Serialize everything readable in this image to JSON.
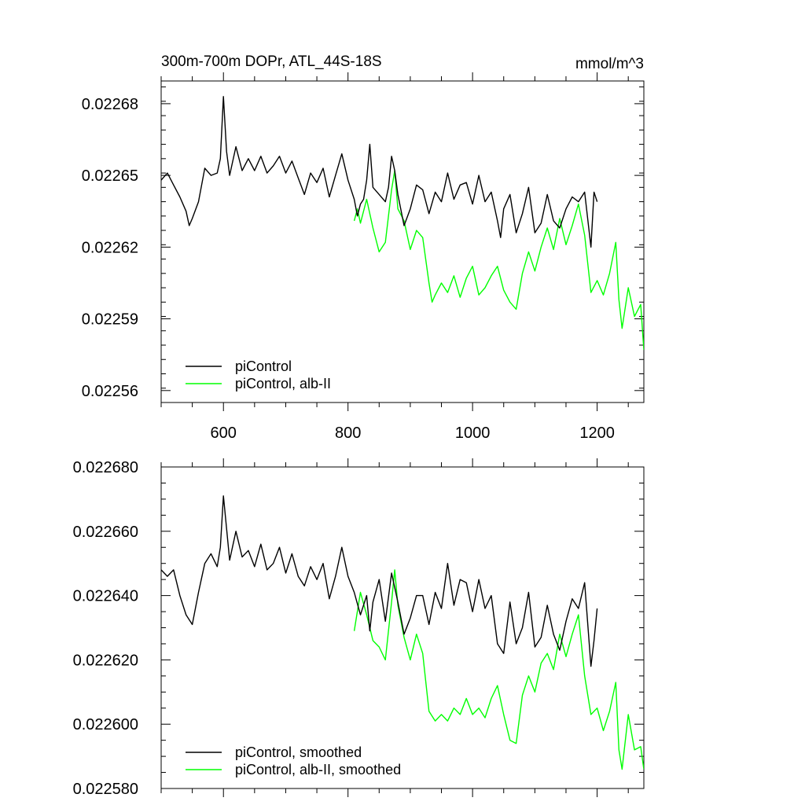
{
  "colors": {
    "piControl": "#000000",
    "alb": "#00ff00"
  },
  "chart_data": [
    {
      "type": "line",
      "title": "300m-700m DOPr, ATL_44S-18S",
      "units": "mmol/m^3",
      "xlim": [
        500,
        1275
      ],
      "ylim": [
        0.022555,
        0.0226895
      ],
      "x_ticks": [
        600,
        800,
        1000,
        1200
      ],
      "x_tick_labels": [
        "600",
        "800",
        "1000",
        "1200"
      ],
      "y_ticks": [
        0.02256,
        0.02259,
        0.02262,
        0.02265,
        0.02268
      ],
      "y_tick_labels": [
        "0.02256",
        "0.02259",
        "0.02262",
        "0.02265",
        "0.02268"
      ],
      "legend_position": "bottom-left",
      "series": [
        {
          "name": "piControl",
          "color": "#000000",
          "x": [
            500,
            510,
            520,
            530,
            540,
            545,
            550,
            560,
            570,
            580,
            590,
            595,
            600,
            605,
            610,
            620,
            630,
            640,
            650,
            660,
            670,
            680,
            690,
            700,
            710,
            720,
            730,
            740,
            750,
            760,
            770,
            780,
            790,
            800,
            810,
            815,
            820,
            825,
            830,
            835,
            840,
            850,
            860,
            865,
            870,
            875,
            880,
            890,
            900,
            910,
            920,
            930,
            940,
            950,
            960,
            970,
            980,
            990,
            1000,
            1010,
            1020,
            1030,
            1040,
            1045,
            1050,
            1060,
            1070,
            1080,
            1090,
            1100,
            1110,
            1120,
            1130,
            1140,
            1150,
            1160,
            1170,
            1180,
            1190,
            1195,
            1200
          ],
          "y": [
            0.022648,
            0.022651,
            0.022646,
            0.022641,
            0.022635,
            0.022629,
            0.022632,
            0.022639,
            0.022653,
            0.02265,
            0.022651,
            0.022657,
            0.022683,
            0.02266,
            0.02265,
            0.022662,
            0.022652,
            0.022657,
            0.022652,
            0.022658,
            0.022651,
            0.022654,
            0.022658,
            0.022651,
            0.022656,
            0.022649,
            0.022642,
            0.022651,
            0.022647,
            0.022653,
            0.022641,
            0.02265,
            0.022659,
            0.022648,
            0.02264,
            0.022633,
            0.022638,
            0.02264,
            0.022648,
            0.022663,
            0.022645,
            0.022642,
            0.022639,
            0.022645,
            0.022658,
            0.022652,
            0.022642,
            0.022629,
            0.022636,
            0.022646,
            0.022644,
            0.022634,
            0.022643,
            0.022639,
            0.022651,
            0.02264,
            0.022646,
            0.022647,
            0.022638,
            0.02265,
            0.022639,
            0.022643,
            0.022631,
            0.022624,
            0.022636,
            0.022642,
            0.022626,
            0.022634,
            0.022645,
            0.022626,
            0.02263,
            0.022642,
            0.022631,
            0.022628,
            0.022636,
            0.022641,
            0.022639,
            0.022643,
            0.02262,
            0.022643,
            0.022639
          ]
        },
        {
          "name": "piControl, alb-II",
          "color": "#00ff00",
          "x": [
            810,
            815,
            820,
            830,
            840,
            850,
            860,
            870,
            875,
            880,
            890,
            900,
            910,
            920,
            930,
            935,
            940,
            950,
            960,
            970,
            980,
            990,
            1000,
            1010,
            1020,
            1030,
            1040,
            1050,
            1060,
            1070,
            1080,
            1090,
            1100,
            1110,
            1120,
            1130,
            1140,
            1150,
            1160,
            1170,
            1180,
            1190,
            1200,
            1210,
            1220,
            1230,
            1235,
            1240,
            1250,
            1260,
            1270,
            1275
          ],
          "y": [
            0.022631,
            0.022636,
            0.02263,
            0.02264,
            0.022628,
            0.022618,
            0.022622,
            0.022644,
            0.022652,
            0.022636,
            0.022631,
            0.022619,
            0.022627,
            0.022624,
            0.022605,
            0.022597,
            0.0226,
            0.022605,
            0.022601,
            0.022608,
            0.022599,
            0.022607,
            0.022612,
            0.0226,
            0.022603,
            0.022608,
            0.022612,
            0.022602,
            0.022597,
            0.022594,
            0.022609,
            0.022618,
            0.02261,
            0.02262,
            0.022628,
            0.022619,
            0.022632,
            0.022621,
            0.022629,
            0.022638,
            0.022625,
            0.022601,
            0.022606,
            0.0226,
            0.022609,
            0.022622,
            0.022598,
            0.022586,
            0.022603,
            0.022591,
            0.022596,
            0.022577
          ]
        }
      ]
    },
    {
      "type": "line",
      "xlim": [
        500,
        1275
      ],
      "ylim": [
        0.02258,
        0.02268
      ],
      "x_ticks": [
        600,
        800,
        1000,
        1200
      ],
      "y_ticks": [
        0.02258,
        0.0226,
        0.02262,
        0.02264,
        0.02266,
        0.02268
      ],
      "y_tick_labels": [
        "0.022580",
        "0.022600",
        "0.022620",
        "0.022640",
        "0.022660",
        "0.022680"
      ],
      "legend_position": "bottom-left",
      "series": [
        {
          "name": "piControl, smoothed",
          "color": "#000000",
          "x": [
            500,
            510,
            520,
            530,
            540,
            550,
            560,
            570,
            580,
            590,
            595,
            600,
            610,
            620,
            630,
            640,
            650,
            660,
            670,
            680,
            690,
            700,
            710,
            720,
            730,
            740,
            750,
            760,
            770,
            780,
            790,
            800,
            810,
            820,
            830,
            835,
            840,
            850,
            860,
            870,
            880,
            890,
            900,
            910,
            920,
            930,
            940,
            950,
            960,
            970,
            980,
            990,
            1000,
            1010,
            1020,
            1030,
            1040,
            1050,
            1060,
            1070,
            1080,
            1090,
            1100,
            1110,
            1120,
            1130,
            1140,
            1150,
            1160,
            1170,
            1180,
            1190,
            1195,
            1200
          ],
          "y": [
            0.022648,
            0.022646,
            0.022648,
            0.02264,
            0.022634,
            0.022631,
            0.022641,
            0.02265,
            0.022653,
            0.022649,
            0.022655,
            0.022671,
            0.022651,
            0.02266,
            0.022652,
            0.022654,
            0.022649,
            0.022656,
            0.022648,
            0.02265,
            0.022655,
            0.022647,
            0.022653,
            0.022646,
            0.022643,
            0.022649,
            0.022645,
            0.02265,
            0.022639,
            0.022646,
            0.022655,
            0.022646,
            0.022641,
            0.022634,
            0.02264,
            0.022629,
            0.022638,
            0.022645,
            0.022632,
            0.022647,
            0.022638,
            0.022628,
            0.022633,
            0.02264,
            0.02264,
            0.022631,
            0.022641,
            0.022636,
            0.02265,
            0.022637,
            0.022645,
            0.022644,
            0.022635,
            0.022645,
            0.022636,
            0.02264,
            0.022625,
            0.022622,
            0.022638,
            0.022625,
            0.02263,
            0.022641,
            0.022624,
            0.022627,
            0.022637,
            0.022628,
            0.022623,
            0.022632,
            0.022639,
            0.022636,
            0.022644,
            0.022618,
            0.022626,
            0.022636
          ]
        },
        {
          "name": "piControl, alb-II, smoothed",
          "color": "#00ff00",
          "x": [
            810,
            820,
            830,
            840,
            850,
            860,
            870,
            875,
            880,
            890,
            900,
            910,
            920,
            930,
            940,
            950,
            960,
            970,
            980,
            990,
            1000,
            1010,
            1020,
            1030,
            1040,
            1050,
            1060,
            1070,
            1080,
            1090,
            1100,
            1110,
            1120,
            1130,
            1140,
            1150,
            1160,
            1170,
            1180,
            1190,
            1200,
            1210,
            1220,
            1230,
            1235,
            1240,
            1250,
            1260,
            1270,
            1275
          ],
          "y": [
            0.022629,
            0.022641,
            0.022634,
            0.022626,
            0.022624,
            0.02262,
            0.022638,
            0.022648,
            0.022637,
            0.022627,
            0.02262,
            0.022628,
            0.022622,
            0.022604,
            0.022601,
            0.022603,
            0.022601,
            0.022605,
            0.022603,
            0.022608,
            0.022603,
            0.022605,
            0.022602,
            0.022608,
            0.022612,
            0.022603,
            0.022595,
            0.022594,
            0.022609,
            0.022615,
            0.02261,
            0.022619,
            0.022622,
            0.022617,
            0.022628,
            0.022621,
            0.022628,
            0.022634,
            0.022615,
            0.022603,
            0.022605,
            0.022598,
            0.022604,
            0.022613,
            0.022592,
            0.022586,
            0.022603,
            0.022592,
            0.022593,
            0.022586
          ]
        }
      ]
    }
  ]
}
